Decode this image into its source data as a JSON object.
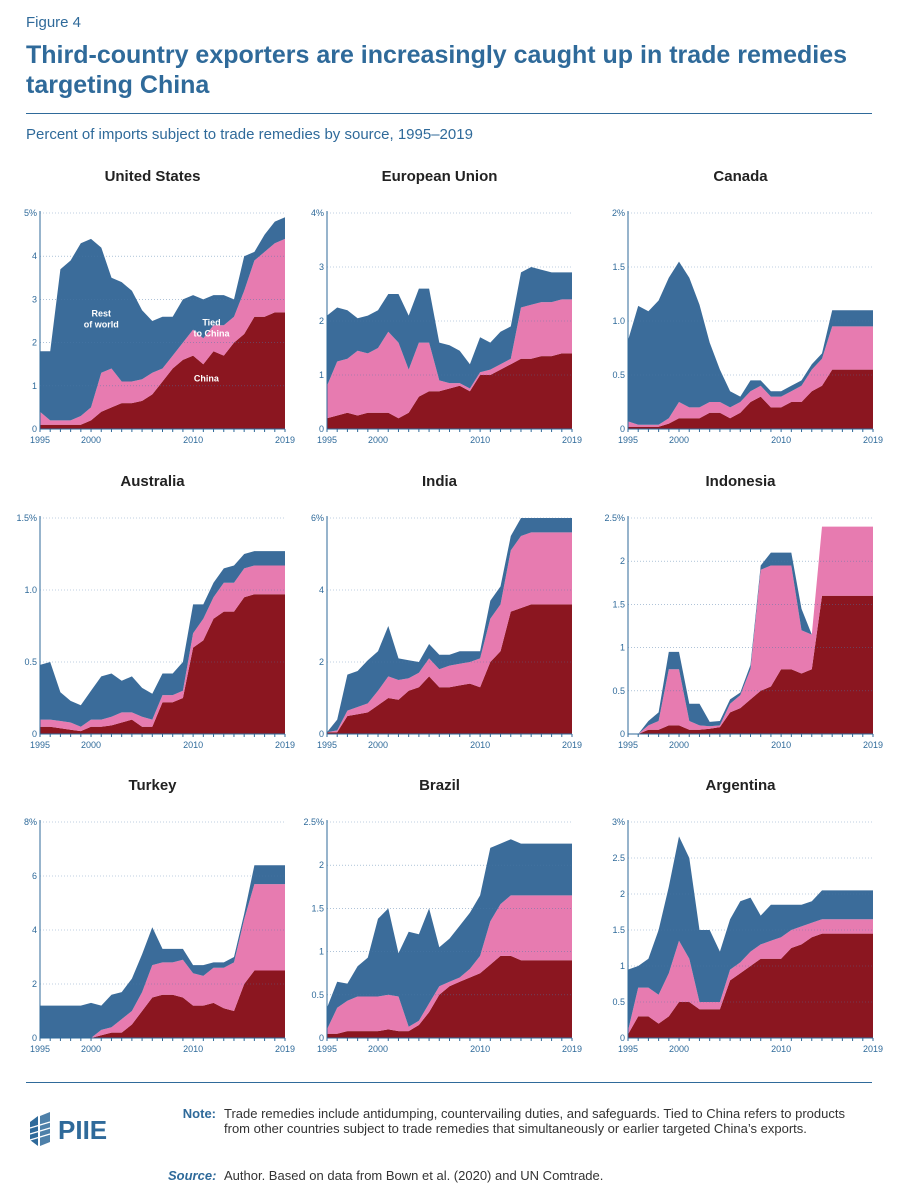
{
  "header": {
    "figure_label": "Figure 4",
    "title": "Third-country exporters are increasingly caught up in trade remedies targeting China",
    "subtitle": "Percent of imports subject to trade remedies by source, 1995–2019"
  },
  "colors": {
    "china": "#8b1620",
    "tied": "#e77bb0",
    "rest": "#3b6c9a",
    "title": "#2f6a9a",
    "axis": "#2f6a9a"
  },
  "series_names": [
    "China",
    "Tied to China",
    "Rest of world"
  ],
  "chart_data": [
    {
      "type": "area",
      "title": "United States",
      "years": [
        1995,
        2019
      ],
      "ylim": [
        0,
        5
      ],
      "yticks": [
        "0",
        "1",
        "2",
        "3",
        "4",
        "5%"
      ],
      "xticks": [
        "1995",
        "2000",
        "2010",
        "2019"
      ],
      "annotations": [
        {
          "text": "Rest of world",
          "year": 2001,
          "y": 2.6,
          "color": "#ffffff"
        },
        {
          "text": "Tied to China",
          "year": 2011.8,
          "y": 2.4,
          "color": "#ffffff"
        },
        {
          "text": "China",
          "year": 2011.3,
          "y": 1.1,
          "color": "#ffffff"
        }
      ],
      "series": [
        {
          "name": "China",
          "values": [
            0.1,
            0.1,
            0.1,
            0.1,
            0.1,
            0.2,
            0.4,
            0.5,
            0.6,
            0.6,
            0.65,
            0.8,
            1.1,
            1.4,
            1.6,
            1.7,
            1.5,
            1.8,
            1.7,
            2.0,
            2.2,
            2.6,
            2.6,
            2.7,
            2.7
          ]
        },
        {
          "name": "Tied to China",
          "values": [
            0.3,
            0.1,
            0.1,
            0.1,
            0.2,
            0.3,
            0.9,
            0.9,
            0.5,
            0.5,
            0.5,
            0.5,
            0.3,
            0.3,
            0.4,
            0.6,
            0.6,
            0.6,
            0.7,
            0.6,
            1.0,
            1.3,
            1.5,
            1.6,
            1.7
          ]
        },
        {
          "name": "Rest of world",
          "values": [
            1.4,
            1.6,
            3.5,
            3.7,
            4.0,
            3.9,
            2.9,
            2.1,
            2.3,
            2.1,
            1.6,
            1.2,
            1.2,
            0.9,
            1.0,
            0.8,
            0.9,
            0.7,
            0.7,
            0.4,
            0.8,
            0.2,
            0.4,
            0.5,
            0.5
          ]
        }
      ]
    },
    {
      "type": "area",
      "title": "European Union",
      "years": [
        1995,
        2019
      ],
      "ylim": [
        0,
        4
      ],
      "yticks": [
        "0",
        "1",
        "2",
        "3",
        "4%"
      ],
      "xticks": [
        "1995",
        "2000",
        "2010",
        "2019"
      ],
      "annotations": [],
      "series": [
        {
          "name": "China",
          "values": [
            0.2,
            0.25,
            0.3,
            0.25,
            0.3,
            0.3,
            0.3,
            0.2,
            0.3,
            0.6,
            0.7,
            0.7,
            0.75,
            0.8,
            0.7,
            1.0,
            1.0,
            1.1,
            1.2,
            1.3,
            1.3,
            1.35,
            1.35,
            1.4,
            1.4
          ]
        },
        {
          "name": "Tied to China",
          "values": [
            0.6,
            1.0,
            1.0,
            1.2,
            1.1,
            1.2,
            1.5,
            1.4,
            0.8,
            1.0,
            0.9,
            0.2,
            0.1,
            0.05,
            0.05,
            0.05,
            0.1,
            0.1,
            0.1,
            0.95,
            1.0,
            1.0,
            1.0,
            1.0,
            1.0
          ]
        },
        {
          "name": "Rest of world",
          "values": [
            1.3,
            1.0,
            0.9,
            0.6,
            0.7,
            0.7,
            0.7,
            0.9,
            1.0,
            1.0,
            1.0,
            0.7,
            0.7,
            0.6,
            0.45,
            0.65,
            0.5,
            0.6,
            0.6,
            0.65,
            0.7,
            0.6,
            0.55,
            0.5,
            0.5
          ]
        }
      ]
    },
    {
      "type": "area",
      "title": "Canada",
      "years": [
        1995,
        2019
      ],
      "ylim": [
        0,
        2
      ],
      "yticks": [
        "0",
        "0.5",
        "1.0",
        "1.5",
        "2%"
      ],
      "xticks": [
        "1995",
        "2000",
        "2010",
        "2019"
      ],
      "annotations": [],
      "series": [
        {
          "name": "China",
          "values": [
            0.02,
            0.02,
            0.02,
            0.02,
            0.05,
            0.1,
            0.1,
            0.1,
            0.15,
            0.15,
            0.1,
            0.15,
            0.25,
            0.3,
            0.2,
            0.2,
            0.25,
            0.25,
            0.35,
            0.4,
            0.55,
            0.55,
            0.55,
            0.55,
            0.55
          ]
        },
        {
          "name": "Tied to China",
          "values": [
            0.05,
            0.02,
            0.02,
            0.02,
            0.05,
            0.15,
            0.1,
            0.1,
            0.1,
            0.1,
            0.1,
            0.1,
            0.1,
            0.1,
            0.1,
            0.1,
            0.1,
            0.15,
            0.2,
            0.25,
            0.4,
            0.4,
            0.4,
            0.4,
            0.4
          ]
        },
        {
          "name": "Rest of world",
          "values": [
            0.75,
            1.1,
            1.05,
            1.15,
            1.3,
            1.3,
            1.2,
            0.95,
            0.55,
            0.3,
            0.15,
            0.05,
            0.1,
            0.05,
            0.05,
            0.05,
            0.05,
            0.05,
            0.05,
            0.05,
            0.15,
            0.15,
            0.15,
            0.15,
            0.15
          ]
        }
      ]
    },
    {
      "type": "area",
      "title": "Australia",
      "years": [
        1995,
        2019
      ],
      "ylim": [
        0,
        1.5
      ],
      "yticks": [
        "0",
        "0.5",
        "1.0",
        "1.5%"
      ],
      "xticks": [
        "1995",
        "2000",
        "2010",
        "2019"
      ],
      "annotations": [],
      "series": [
        {
          "name": "China",
          "values": [
            0.05,
            0.05,
            0.04,
            0.03,
            0.02,
            0.05,
            0.05,
            0.06,
            0.08,
            0.1,
            0.05,
            0.05,
            0.22,
            0.22,
            0.25,
            0.6,
            0.65,
            0.8,
            0.85,
            0.85,
            0.95,
            0.97,
            0.97,
            0.97,
            0.97
          ]
        },
        {
          "name": "Tied to China",
          "values": [
            0.05,
            0.05,
            0.05,
            0.05,
            0.03,
            0.05,
            0.05,
            0.06,
            0.07,
            0.05,
            0.07,
            0.05,
            0.05,
            0.05,
            0.05,
            0.1,
            0.15,
            0.15,
            0.2,
            0.2,
            0.2,
            0.2,
            0.2,
            0.2,
            0.2
          ]
        },
        {
          "name": "Rest of world",
          "values": [
            0.38,
            0.4,
            0.2,
            0.15,
            0.15,
            0.2,
            0.3,
            0.3,
            0.22,
            0.25,
            0.2,
            0.18,
            0.15,
            0.15,
            0.2,
            0.2,
            0.1,
            0.1,
            0.1,
            0.12,
            0.1,
            0.1,
            0.1,
            0.1,
            0.1
          ]
        }
      ]
    },
    {
      "type": "area",
      "title": "India",
      "years": [
        1995,
        2019
      ],
      "ylim": [
        0,
        6
      ],
      "yticks": [
        "0",
        "2",
        "4",
        "6%"
      ],
      "xticks": [
        "1995",
        "2000",
        "2010",
        "2019"
      ],
      "annotations": [],
      "series": [
        {
          "name": "China",
          "values": [
            0.05,
            0.05,
            0.5,
            0.55,
            0.6,
            0.8,
            1.0,
            0.95,
            1.2,
            1.3,
            1.6,
            1.3,
            1.3,
            1.35,
            1.4,
            1.3,
            2.0,
            2.3,
            3.4,
            3.5,
            3.6,
            3.6,
            3.6,
            3.6,
            3.6
          ]
        },
        {
          "name": "Tied to China",
          "values": [
            0.0,
            0.05,
            0.15,
            0.2,
            0.25,
            0.4,
            0.6,
            0.55,
            0.35,
            0.4,
            0.5,
            0.5,
            0.6,
            0.6,
            0.6,
            0.8,
            1.2,
            1.3,
            1.7,
            2.0,
            2.0,
            2.0,
            2.0,
            2.0,
            2.0
          ]
        },
        {
          "name": "Rest of world",
          "values": [
            0.0,
            0.3,
            1.0,
            1.0,
            1.2,
            1.1,
            1.4,
            0.6,
            0.5,
            0.3,
            0.4,
            0.4,
            0.3,
            0.35,
            0.3,
            0.2,
            0.5,
            0.5,
            0.4,
            0.5,
            0.4,
            0.4,
            0.4,
            0.4,
            0.4
          ]
        }
      ]
    },
    {
      "type": "area",
      "title": "Indonesia",
      "years": [
        1995,
        2019
      ],
      "ylim": [
        0,
        2.5
      ],
      "yticks": [
        "0",
        "0.5",
        "1",
        "1.5",
        "2",
        "2.5%"
      ],
      "xticks": [
        "1995",
        "2000",
        "2010",
        "2019"
      ],
      "annotations": [],
      "series": [
        {
          "name": "China",
          "values": [
            0.0,
            0.0,
            0.05,
            0.05,
            0.1,
            0.1,
            0.05,
            0.05,
            0.06,
            0.08,
            0.25,
            0.3,
            0.4,
            0.5,
            0.55,
            0.75,
            0.75,
            0.7,
            0.75,
            1.6,
            1.6,
            1.6,
            1.6,
            1.6,
            1.6
          ]
        },
        {
          "name": "Tied to China",
          "values": [
            0.0,
            0.0,
            0.05,
            0.1,
            0.65,
            0.65,
            0.1,
            0.05,
            0.03,
            0.02,
            0.1,
            0.15,
            0.35,
            1.4,
            1.4,
            1.2,
            1.2,
            0.5,
            0.4,
            0.8,
            0.8,
            0.8,
            0.8,
            0.8,
            0.8
          ]
        },
        {
          "name": "Rest of world",
          "values": [
            0.0,
            0.0,
            0.05,
            0.1,
            0.2,
            0.2,
            0.2,
            0.25,
            0.05,
            0.05,
            0.05,
            0.03,
            0.05,
            0.05,
            0.15,
            0.15,
            0.15,
            0.25,
            0.0,
            0.0,
            0.0,
            0.0,
            0.0,
            0.0,
            0.0
          ]
        }
      ]
    },
    {
      "type": "area",
      "title": "Turkey",
      "years": [
        1995,
        2019
      ],
      "ylim": [
        0,
        8
      ],
      "yticks": [
        "0",
        "2",
        "4",
        "6",
        "8%"
      ],
      "xticks": [
        "1995",
        "2000",
        "2010",
        "2019"
      ],
      "annotations": [],
      "series": [
        {
          "name": "China",
          "values": [
            0.0,
            0.0,
            0.0,
            0.0,
            0.0,
            0.0,
            0.1,
            0.2,
            0.2,
            0.5,
            1.0,
            1.5,
            1.6,
            1.6,
            1.5,
            1.2,
            1.2,
            1.3,
            1.1,
            1.0,
            2.0,
            2.5,
            2.5,
            2.5,
            2.5
          ]
        },
        {
          "name": "Tied to China",
          "values": [
            0.0,
            0.0,
            0.0,
            0.0,
            0.0,
            0.0,
            0.2,
            0.2,
            0.5,
            0.5,
            0.7,
            1.2,
            1.2,
            1.2,
            1.4,
            1.2,
            1.1,
            1.3,
            1.5,
            1.8,
            2.4,
            3.2,
            3.2,
            3.2,
            3.2
          ]
        },
        {
          "name": "Rest of world",
          "values": [
            1.2,
            1.2,
            1.2,
            1.2,
            1.2,
            1.3,
            0.9,
            1.2,
            1.0,
            1.2,
            1.4,
            1.4,
            0.5,
            0.5,
            0.4,
            0.3,
            0.4,
            0.2,
            0.2,
            0.2,
            0.2,
            0.7,
            0.7,
            0.7,
            0.7
          ]
        }
      ]
    },
    {
      "type": "area",
      "title": "Brazil",
      "years": [
        1995,
        2019
      ],
      "ylim": [
        0,
        2.5
      ],
      "yticks": [
        "0",
        "0.5",
        "1",
        "1.5",
        "2",
        "2.5%"
      ],
      "xticks": [
        "1995",
        "2000",
        "2010",
        "2019"
      ],
      "annotations": [],
      "series": [
        {
          "name": "China",
          "values": [
            0.05,
            0.05,
            0.08,
            0.08,
            0.08,
            0.08,
            0.1,
            0.08,
            0.08,
            0.15,
            0.3,
            0.5,
            0.6,
            0.65,
            0.7,
            0.75,
            0.85,
            0.95,
            0.95,
            0.9,
            0.9,
            0.9,
            0.9,
            0.9,
            0.9
          ]
        },
        {
          "name": "Tied to China",
          "values": [
            0.05,
            0.3,
            0.35,
            0.4,
            0.4,
            0.4,
            0.4,
            0.4,
            0.05,
            0.05,
            0.1,
            0.1,
            0.05,
            0.05,
            0.1,
            0.2,
            0.5,
            0.6,
            0.7,
            0.75,
            0.75,
            0.75,
            0.75,
            0.75,
            0.75
          ]
        },
        {
          "name": "Rest of world",
          "values": [
            0.25,
            0.3,
            0.2,
            0.35,
            0.45,
            0.9,
            1.0,
            0.5,
            1.1,
            1.0,
            1.1,
            0.45,
            0.5,
            0.6,
            0.65,
            0.7,
            0.85,
            0.7,
            0.65,
            0.6,
            0.6,
            0.6,
            0.6,
            0.6,
            0.6
          ]
        }
      ]
    },
    {
      "type": "area",
      "title": "Argentina",
      "years": [
        1995,
        2019
      ],
      "ylim": [
        0,
        3
      ],
      "yticks": [
        "0",
        "0.5",
        "1",
        "1.5",
        "2",
        "2.5",
        "3%"
      ],
      "xticks": [
        "1995",
        "2000",
        "2010",
        "2019"
      ],
      "annotations": [],
      "series": [
        {
          "name": "China",
          "values": [
            0.05,
            0.3,
            0.3,
            0.2,
            0.3,
            0.5,
            0.5,
            0.4,
            0.4,
            0.4,
            0.8,
            0.9,
            1.0,
            1.1,
            1.1,
            1.1,
            1.25,
            1.3,
            1.4,
            1.45,
            1.45,
            1.45,
            1.45,
            1.45,
            1.45
          ]
        },
        {
          "name": "Tied to China",
          "values": [
            0.05,
            0.4,
            0.4,
            0.4,
            0.6,
            0.85,
            0.6,
            0.1,
            0.1,
            0.1,
            0.15,
            0.15,
            0.2,
            0.2,
            0.25,
            0.3,
            0.25,
            0.25,
            0.2,
            0.2,
            0.2,
            0.2,
            0.2,
            0.2,
            0.2
          ]
        },
        {
          "name": "Rest of world",
          "values": [
            0.85,
            0.3,
            0.4,
            0.9,
            1.2,
            1.45,
            1.4,
            1.0,
            1.0,
            0.7,
            0.7,
            0.85,
            0.75,
            0.4,
            0.5,
            0.45,
            0.35,
            0.3,
            0.3,
            0.4,
            0.4,
            0.4,
            0.4,
            0.4,
            0.4
          ]
        }
      ]
    }
  ],
  "footer": {
    "logo_text": "PIIE",
    "note_label": "Note:",
    "note_text": "Trade remedies include antidumping, countervailing duties, and safeguards. Tied to China refers to products from other countries subject to trade remedies that simultaneously or earlier targeted China’s exports.",
    "source_label": "Source:",
    "source_text": "Author. Based on data from Bown et al. (2020) and UN Comtrade."
  }
}
